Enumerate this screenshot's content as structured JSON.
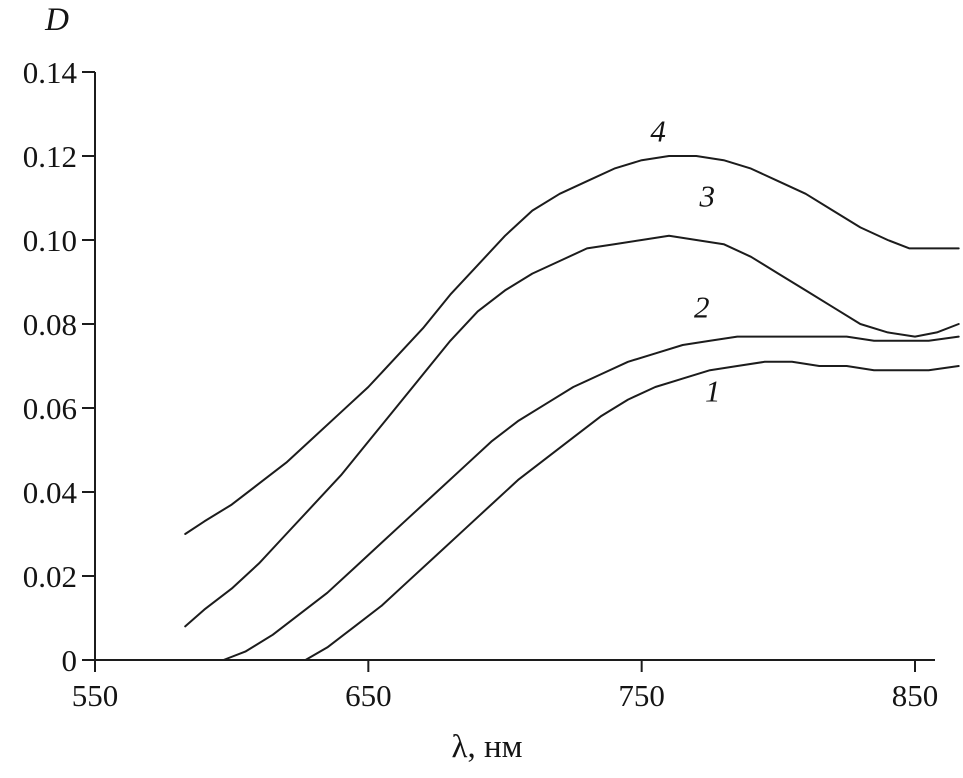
{
  "style": {
    "background": "#ffffff",
    "line_color": "#1c1c1c",
    "axis_color": "#1c1c1c"
  },
  "chart_data": {
    "type": "line",
    "title": "",
    "xlabel": "λ, нм",
    "ylabel": "D",
    "xlim": [
      550,
      868
    ],
    "ylim": [
      0,
      0.14
    ],
    "x_ticks": [
      550,
      650,
      750,
      850
    ],
    "y_ticks": [
      0,
      0.02,
      0.04,
      0.06,
      0.08,
      0.1,
      0.12,
      0.14
    ],
    "grid": false,
    "legend": "inline-curve-labels",
    "series": [
      {
        "name": "1",
        "label_pos": {
          "x": 776,
          "y": 0.0615
        },
        "points": [
          [
            627,
            0.0
          ],
          [
            635,
            0.003
          ],
          [
            645,
            0.008
          ],
          [
            655,
            0.013
          ],
          [
            665,
            0.019
          ],
          [
            675,
            0.025
          ],
          [
            685,
            0.031
          ],
          [
            695,
            0.037
          ],
          [
            705,
            0.043
          ],
          [
            715,
            0.048
          ],
          [
            725,
            0.053
          ],
          [
            735,
            0.058
          ],
          [
            745,
            0.062
          ],
          [
            755,
            0.065
          ],
          [
            765,
            0.067
          ],
          [
            775,
            0.069
          ],
          [
            785,
            0.07
          ],
          [
            795,
            0.071
          ],
          [
            805,
            0.071
          ],
          [
            815,
            0.07
          ],
          [
            825,
            0.07
          ],
          [
            835,
            0.069
          ],
          [
            845,
            0.069
          ],
          [
            855,
            0.069
          ],
          [
            866,
            0.07
          ]
        ]
      },
      {
        "name": "2",
        "label_pos": {
          "x": 772,
          "y": 0.0815
        },
        "points": [
          [
            597,
            0.0
          ],
          [
            605,
            0.002
          ],
          [
            615,
            0.006
          ],
          [
            625,
            0.011
          ],
          [
            635,
            0.016
          ],
          [
            645,
            0.022
          ],
          [
            655,
            0.028
          ],
          [
            665,
            0.034
          ],
          [
            675,
            0.04
          ],
          [
            685,
            0.046
          ],
          [
            695,
            0.052
          ],
          [
            705,
            0.057
          ],
          [
            715,
            0.061
          ],
          [
            725,
            0.065
          ],
          [
            735,
            0.068
          ],
          [
            745,
            0.071
          ],
          [
            755,
            0.073
          ],
          [
            765,
            0.075
          ],
          [
            775,
            0.076
          ],
          [
            785,
            0.077
          ],
          [
            795,
            0.077
          ],
          [
            805,
            0.077
          ],
          [
            815,
            0.077
          ],
          [
            825,
            0.077
          ],
          [
            835,
            0.076
          ],
          [
            845,
            0.076
          ],
          [
            855,
            0.076
          ],
          [
            866,
            0.077
          ]
        ]
      },
      {
        "name": "3",
        "label_pos": {
          "x": 774,
          "y": 0.108
        },
        "points": [
          [
            583,
            0.008
          ],
          [
            590,
            0.012
          ],
          [
            600,
            0.017
          ],
          [
            610,
            0.023
          ],
          [
            620,
            0.03
          ],
          [
            630,
            0.037
          ],
          [
            640,
            0.044
          ],
          [
            650,
            0.052
          ],
          [
            660,
            0.06
          ],
          [
            670,
            0.068
          ],
          [
            680,
            0.076
          ],
          [
            690,
            0.083
          ],
          [
            700,
            0.088
          ],
          [
            710,
            0.092
          ],
          [
            720,
            0.095
          ],
          [
            730,
            0.098
          ],
          [
            740,
            0.099
          ],
          [
            750,
            0.1
          ],
          [
            760,
            0.101
          ],
          [
            770,
            0.1
          ],
          [
            780,
            0.099
          ],
          [
            790,
            0.096
          ],
          [
            800,
            0.092
          ],
          [
            810,
            0.088
          ],
          [
            820,
            0.084
          ],
          [
            830,
            0.08
          ],
          [
            840,
            0.078
          ],
          [
            850,
            0.077
          ],
          [
            858,
            0.078
          ],
          [
            866,
            0.08
          ]
        ]
      },
      {
        "name": "4",
        "label_pos": {
          "x": 756,
          "y": 0.1235
        },
        "points": [
          [
            583,
            0.03
          ],
          [
            590,
            0.033
          ],
          [
            600,
            0.037
          ],
          [
            610,
            0.042
          ],
          [
            620,
            0.047
          ],
          [
            630,
            0.053
          ],
          [
            640,
            0.059
          ],
          [
            650,
            0.065
          ],
          [
            660,
            0.072
          ],
          [
            670,
            0.079
          ],
          [
            680,
            0.087
          ],
          [
            690,
            0.094
          ],
          [
            700,
            0.101
          ],
          [
            710,
            0.107
          ],
          [
            720,
            0.111
          ],
          [
            730,
            0.114
          ],
          [
            740,
            0.117
          ],
          [
            750,
            0.119
          ],
          [
            760,
            0.12
          ],
          [
            770,
            0.12
          ],
          [
            780,
            0.119
          ],
          [
            790,
            0.117
          ],
          [
            800,
            0.114
          ],
          [
            810,
            0.111
          ],
          [
            820,
            0.107
          ],
          [
            830,
            0.103
          ],
          [
            840,
            0.1
          ],
          [
            848,
            0.098
          ],
          [
            860,
            0.098
          ],
          [
            866,
            0.098
          ]
        ]
      }
    ]
  }
}
